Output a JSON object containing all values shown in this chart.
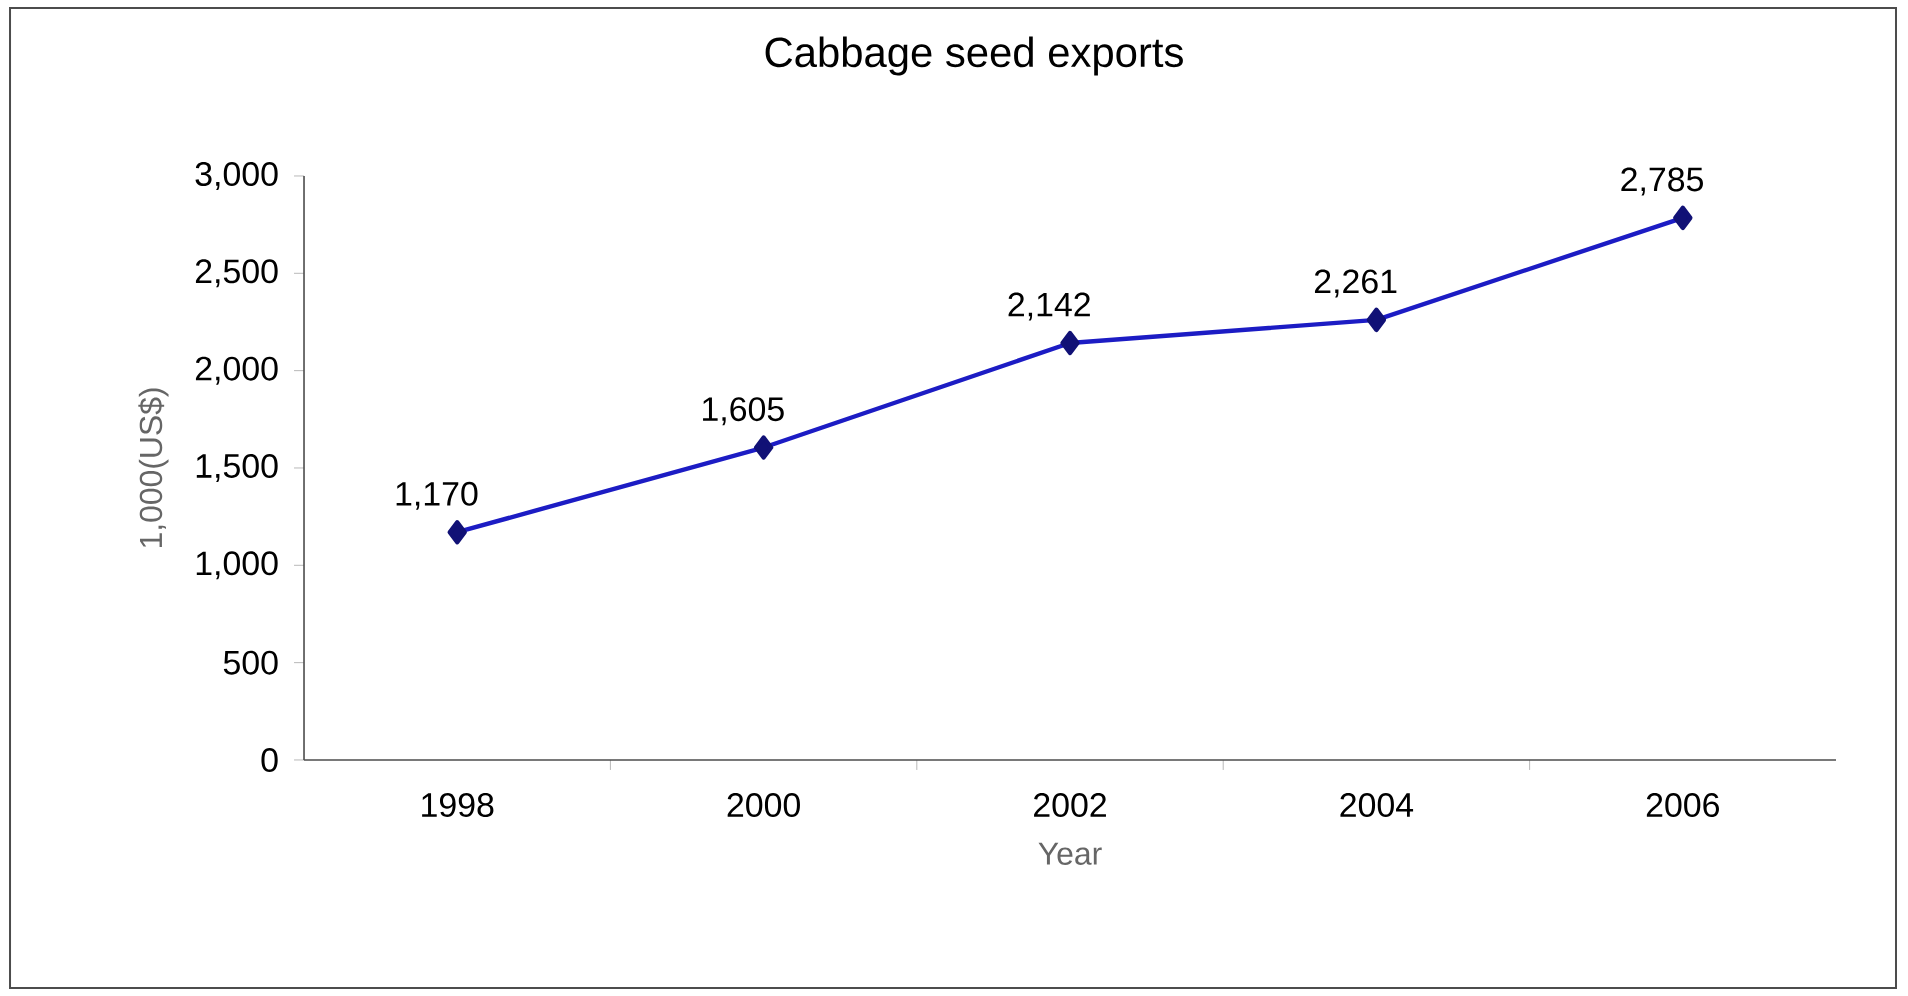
{
  "chart_data": {
    "type": "line",
    "title": "Cabbage seed exports",
    "xlabel": "Year",
    "ylabel": "1,000(US$)",
    "categories": [
      "1998",
      "2000",
      "2002",
      "2004",
      "2006"
    ],
    "values": [
      1170,
      1605,
      2142,
      2261,
      2785
    ],
    "value_labels": [
      "1,170",
      "1,605",
      "2,142",
      "2,261",
      "2,785"
    ],
    "color": "#1c1cc4",
    "marker": "diamond",
    "line_style": "solid",
    "ylim": [
      0,
      3000
    ],
    "yticks": [
      0,
      500,
      {
        "value": 1000,
        "label": "1,000"
      },
      {
        "value": 1500,
        "label": "1,500"
      },
      {
        "value": 2000,
        "label": "2,000"
      },
      {
        "value": 2500,
        "label": "2,500"
      },
      {
        "value": 3000,
        "label": "3,000"
      }
    ],
    "grid": false
  }
}
